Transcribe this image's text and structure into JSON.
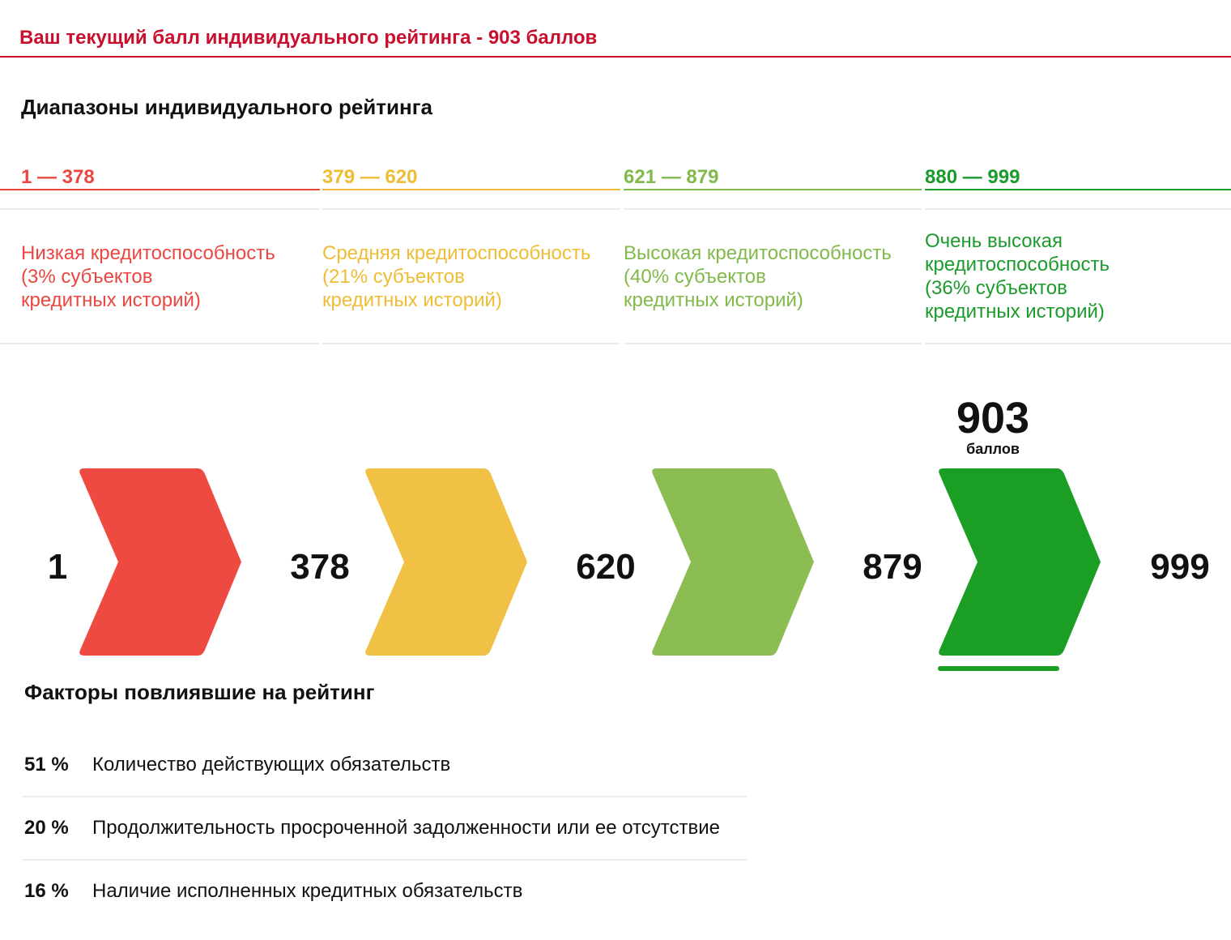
{
  "header": {
    "title": "Ваш текущий балл индивидуального рейтинга - 903 баллов",
    "accent_color": "#c8102e"
  },
  "ranges_section": {
    "title": "Диапазоны индивидуального рейтинга",
    "ranges": [
      {
        "label": "1 — 378",
        "description": "Низкая кредитоспособность\n(3% субъектов\nкредитных историй)",
        "color": "#ea4742",
        "chevron_color": "#ef4a42"
      },
      {
        "label": "379 — 620",
        "description": "Средняя кредитоспособность\n(21% субъектов\nкредитных историй)",
        "color": "#efbd35",
        "chevron_color": "#f0c144"
      },
      {
        "label": "621 — 879",
        "description": "Высокая кредитоспособность\n(40% субъектов\nкредитных историй)",
        "color": "#82b94b",
        "chevron_color": "#8cbd53"
      },
      {
        "label": "880 — 999",
        "description": "Очень высокая\nкредитоспособность\n(36% субъектов\nкредитных историй)",
        "color": "#1a9b2b",
        "chevron_color": "#1a9e24"
      }
    ]
  },
  "score": {
    "value": "903",
    "unit": "баллов",
    "current_range_index": 3
  },
  "scale": {
    "boundaries": [
      "1",
      "378",
      "620",
      "879",
      "999"
    ]
  },
  "factors_section": {
    "title": "Факторы повлиявшие на рейтинг",
    "items": [
      {
        "percent": "51 %",
        "text": "Количество действующих обязательств"
      },
      {
        "percent": "20 %",
        "text": "Продолжительность просроченной задолженности или ее отсутствие"
      },
      {
        "percent": "16 %",
        "text": "Наличие исполненных кредитных обязательств"
      }
    ]
  }
}
